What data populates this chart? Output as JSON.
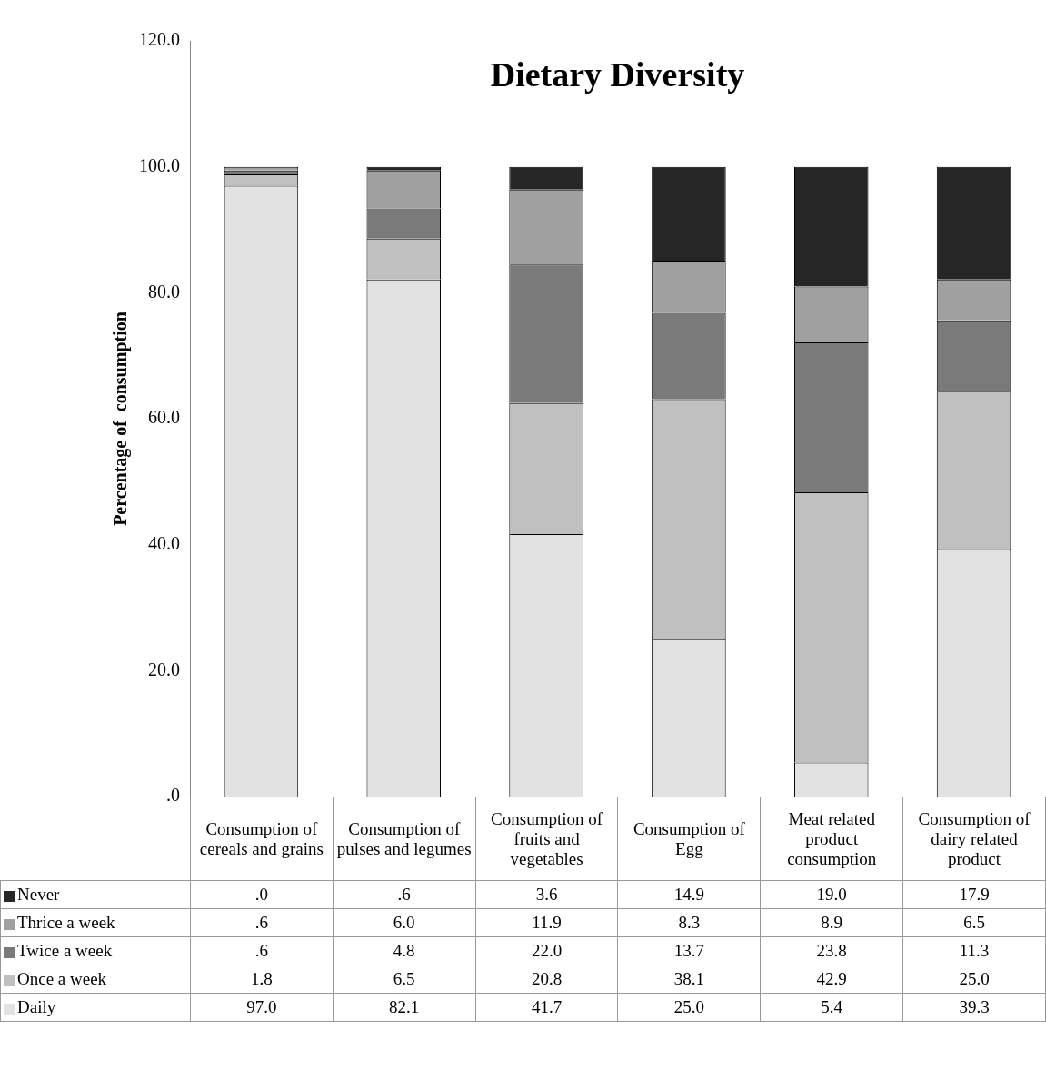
{
  "chart_data": {
    "type": "bar",
    "title": "Dietary Diversity",
    "ylabel": "Percentage of  consumption",
    "stacked": true,
    "legend": "bottom",
    "grid": false,
    "categories": [
      "Consumption of cereals and grains",
      "Consumption of pulses and legumes",
      "Consumption of fruits and vegetables",
      "Consumption of Egg",
      "Meat related product consumption",
      "Consumption of dairy related product"
    ],
    "ylim": [
      0,
      120
    ],
    "yticks": [
      {
        "value": 0,
        "label": ".0"
      },
      {
        "value": 20,
        "label": "20.0"
      },
      {
        "value": 40,
        "label": "40.0"
      },
      {
        "value": 60,
        "label": "60.0"
      },
      {
        "value": 80,
        "label": "80.0"
      },
      {
        "value": 100,
        "label": "100.0"
      },
      {
        "value": 120,
        "label": "120.0"
      }
    ],
    "series": [
      {
        "name": "Daily",
        "color": "#e2e2e2",
        "values": [
          97.0,
          82.1,
          41.7,
          25.0,
          5.4,
          39.3
        ],
        "value_labels": [
          "97.0",
          "82.1",
          "41.7",
          "25.0",
          "5.4",
          "39.3"
        ]
      },
      {
        "name": "Once a week",
        "color": "#c0c0c0",
        "values": [
          1.8,
          6.5,
          20.8,
          38.1,
          42.9,
          25.0
        ],
        "value_labels": [
          "1.8",
          "6.5",
          "20.8",
          "38.1",
          "42.9",
          "25.0"
        ]
      },
      {
        "name": "Twice a week",
        "color": "#7a7a7a",
        "values": [
          0.6,
          4.8,
          22.0,
          13.7,
          23.8,
          11.3
        ],
        "value_labels": [
          ".6",
          "4.8",
          "22.0",
          "13.7",
          "23.8",
          "11.3"
        ]
      },
      {
        "name": "Thrice a week",
        "color": "#a0a0a0",
        "values": [
          0.6,
          6.0,
          11.9,
          8.3,
          8.9,
          6.5
        ],
        "value_labels": [
          ".6",
          "6.0",
          "11.9",
          "8.3",
          "8.9",
          "6.5"
        ]
      },
      {
        "name": "Never",
        "color": "#262626",
        "values": [
          0.0,
          0.6,
          3.6,
          14.9,
          19.0,
          17.9
        ],
        "value_labels": [
          ".0",
          ".6",
          "3.6",
          "14.9",
          "19.0",
          "17.9"
        ]
      }
    ]
  }
}
